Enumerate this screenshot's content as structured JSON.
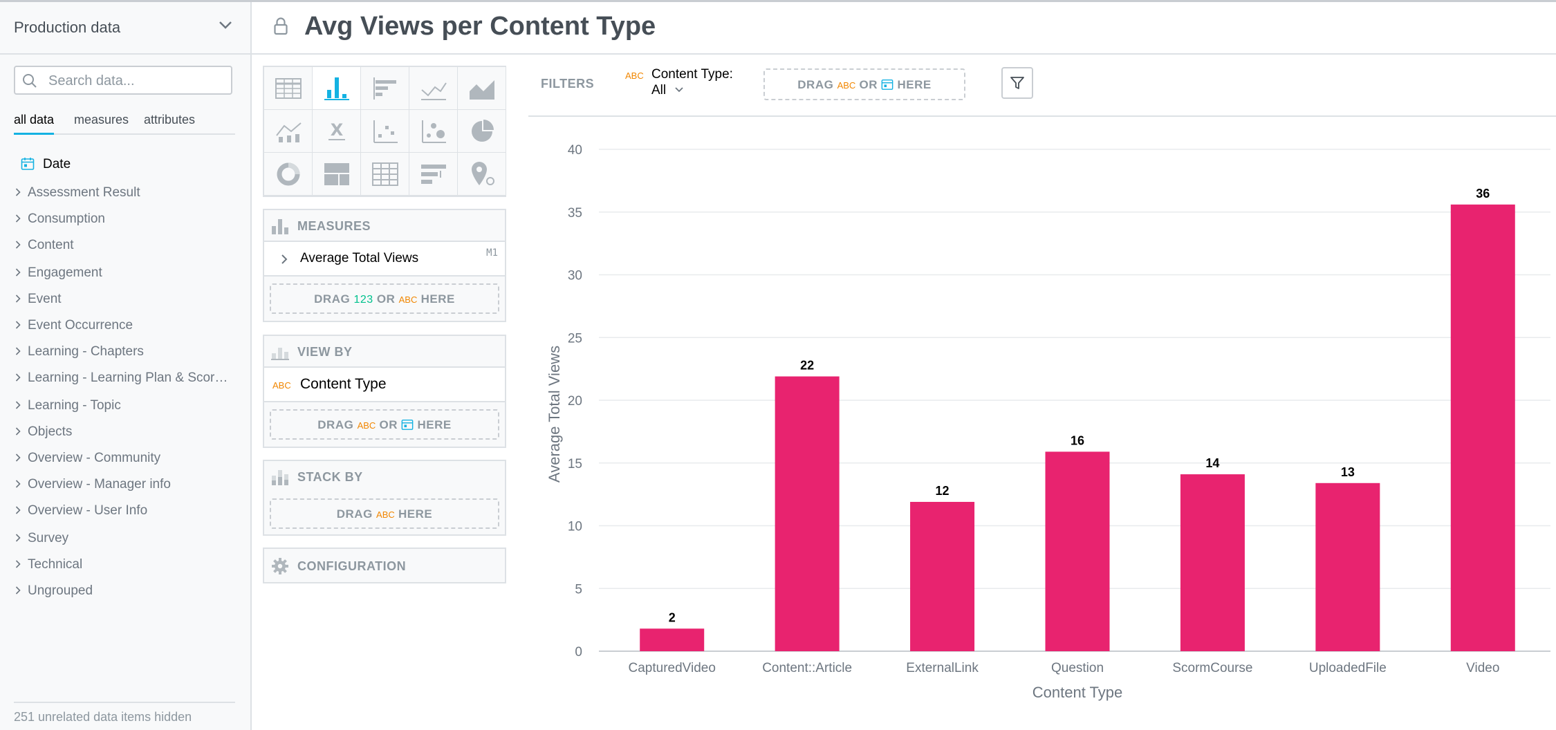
{
  "sidebar": {
    "dataset": "Production data",
    "search_placeholder": "Search data...",
    "tabs": [
      "all data",
      "measures",
      "attributes"
    ],
    "date_item": "Date",
    "folders": [
      "Assessment Result",
      "Consumption",
      "Content",
      "Engagement",
      "Event",
      "Event Occurrence",
      "Learning - Chapters",
      "Learning - Learning Plan & Scor…",
      "Learning - Topic",
      "Objects",
      "Overview - Community",
      "Overview - Manager info",
      "Overview - User Info",
      "Survey",
      "Technical",
      "Ungrouped"
    ],
    "hidden_note": "251 unrelated data items hidden"
  },
  "header": {
    "title": "Avg Views per Content Type"
  },
  "buckets": {
    "measures": {
      "title": "MEASURES",
      "item": "Average Total Views",
      "item_tag": "M1",
      "drop_pre": "DRAG",
      "drop_num": "123",
      "drop_or": "OR",
      "drop_abc": "ABC",
      "drop_post": "HERE"
    },
    "view_by": {
      "title": "VIEW BY",
      "item_tag": "ABC",
      "item": "Content Type",
      "drop_pre": "DRAG",
      "drop_abc": "ABC",
      "drop_or": "OR",
      "drop_post": "HERE"
    },
    "stack_by": {
      "title": "STACK BY",
      "drop_pre": "DRAG",
      "drop_abc": "ABC",
      "drop_post": "HERE"
    },
    "configuration": {
      "title": "CONFIGURATION"
    }
  },
  "filters": {
    "label": "FILTERS",
    "chip_tag": "ABC",
    "chip_name": "Content Type:",
    "chip_value": "All",
    "drop_pre": "DRAG",
    "drop_abc": "ABC",
    "drop_or": "OR",
    "drop_post": "HERE"
  },
  "icons": {
    "dropdown": "chevron-down-icon",
    "search": "search-icon",
    "lock": "lock-icon",
    "filter": "funnel-icon",
    "settings": "gear-icon"
  },
  "colors": {
    "accent": "#14b2e2",
    "bar": "#e8236f",
    "abc": "#f18600",
    "num": "#00c18d"
  },
  "chart_data": {
    "type": "bar",
    "categories": [
      "CapturedVideo",
      "Content::Article",
      "ExternalLink",
      "Question",
      "ScormCourse",
      "UploadedFile",
      "Video"
    ],
    "values": [
      1.8,
      21.9,
      11.9,
      15.9,
      14.1,
      13.4,
      35.6
    ],
    "data_labels": [
      "2",
      "22",
      "12",
      "16",
      "14",
      "13",
      "36"
    ],
    "xlabel": "Content Type",
    "ylabel": "Average Total Views",
    "ylim": [
      0,
      40
    ],
    "yticks": [
      0,
      5,
      10,
      15,
      20,
      25,
      30,
      35,
      40
    ],
    "grid": true,
    "legend": "none"
  }
}
